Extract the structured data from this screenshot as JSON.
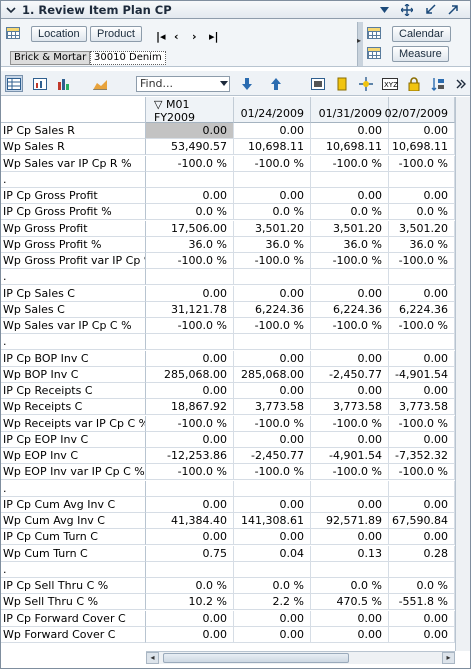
{
  "title": "1. Review Item Plan CP",
  "dims": {
    "location_label": "Location",
    "product_label": "Product",
    "calendar_label": "Calendar",
    "measure_label": "Measure",
    "location_value": "Brick & Mortar",
    "product_value": "30010 Denim"
  },
  "toolbar": {
    "find_placeholder": "Find..."
  },
  "columns": [
    {
      "label": "M01 FY2009",
      "is_period": true
    },
    {
      "label": "01/24/2009"
    },
    {
      "label": "01/31/2009"
    },
    {
      "label": "02/07/2009"
    }
  ],
  "rows": [
    {
      "label": "IP Cp Sales R",
      "values": [
        "0.00",
        "0.00",
        "0.00",
        "0.00"
      ]
    },
    {
      "label": "Wp Sales R",
      "values": [
        "53,490.57",
        "10,698.11",
        "10,698.11",
        "10,698.11"
      ]
    },
    {
      "label": "Wp Sales var IP Cp R %",
      "values": [
        "-100.0 %",
        "-100.0 %",
        "-100.0 %",
        "-100.0 %"
      ]
    },
    {
      "label": ".",
      "values": [
        "",
        "",
        "",
        ""
      ]
    },
    {
      "label": "IP Cp Gross Profit",
      "values": [
        "0.00",
        "0.00",
        "0.00",
        "0.00"
      ]
    },
    {
      "label": "IP Cp Gross Profit %",
      "values": [
        "0.0 %",
        "0.0 %",
        "0.0 %",
        "0.0 %"
      ]
    },
    {
      "label": "Wp Gross Profit",
      "values": [
        "17,506.00",
        "3,501.20",
        "3,501.20",
        "3,501.20"
      ]
    },
    {
      "label": "Wp Gross Profit %",
      "values": [
        "36.0 %",
        "36.0 %",
        "36.0 %",
        "36.0 %"
      ]
    },
    {
      "label": "Wp Gross Profit var IP Cp %",
      "values": [
        "-100.0 %",
        "-100.0 %",
        "-100.0 %",
        "-100.0 %"
      ]
    },
    {
      "label": ".",
      "values": [
        "",
        "",
        "",
        ""
      ]
    },
    {
      "label": "IP Cp Sales C",
      "values": [
        "0.00",
        "0.00",
        "0.00",
        "0.00"
      ]
    },
    {
      "label": "Wp Sales C",
      "values": [
        "31,121.78",
        "6,224.36",
        "6,224.36",
        "6,224.36"
      ]
    },
    {
      "label": "Wp Sales var IP Cp C %",
      "values": [
        "-100.0 %",
        "-100.0 %",
        "-100.0 %",
        "-100.0 %"
      ]
    },
    {
      "label": ".",
      "values": [
        "",
        "",
        "",
        ""
      ]
    },
    {
      "label": "IP Cp BOP Inv C",
      "values": [
        "0.00",
        "0.00",
        "0.00",
        "0.00"
      ]
    },
    {
      "label": "Wp BOP Inv C",
      "values": [
        "285,068.00",
        "285,068.00",
        "-2,450.77",
        "-4,901.54"
      ]
    },
    {
      "label": "IP Cp Receipts C",
      "values": [
        "0.00",
        "0.00",
        "0.00",
        "0.00"
      ]
    },
    {
      "label": "Wp Receipts C",
      "values": [
        "18,867.92",
        "3,773.58",
        "3,773.58",
        "3,773.58"
      ]
    },
    {
      "label": "Wp Receipts var IP Cp C %",
      "values": [
        "-100.0 %",
        "-100.0 %",
        "-100.0 %",
        "-100.0 %"
      ]
    },
    {
      "label": "IP Cp EOP Inv C",
      "values": [
        "0.00",
        "0.00",
        "0.00",
        "0.00"
      ]
    },
    {
      "label": "Wp EOP Inv C",
      "values": [
        "-12,253.86",
        "-2,450.77",
        "-4,901.54",
        "-7,352.32"
      ]
    },
    {
      "label": "Wp EOP Inv var IP Cp C %",
      "values": [
        "-100.0 %",
        "-100.0 %",
        "-100.0 %",
        "-100.0 %"
      ]
    },
    {
      "label": ".",
      "values": [
        "",
        "",
        "",
        ""
      ]
    },
    {
      "label": "IP Cp Cum Avg Inv C",
      "values": [
        "0.00",
        "0.00",
        "0.00",
        "0.00"
      ]
    },
    {
      "label": "Wp Cum Avg Inv C",
      "values": [
        "41,384.40",
        "141,308.61",
        "92,571.89",
        "67,590.84"
      ]
    },
    {
      "label": "IP Cp Cum Turn C",
      "values": [
        "0.00",
        "0.00",
        "0.00",
        "0.00"
      ]
    },
    {
      "label": "Wp Cum Turn C",
      "values": [
        "0.75",
        "0.04",
        "0.13",
        "0.28"
      ]
    },
    {
      "label": ".",
      "values": [
        "",
        "",
        "",
        ""
      ]
    },
    {
      "label": "IP Cp Sell Thru C %",
      "values": [
        "0.0 %",
        "0.0 %",
        "0.0 %",
        "0.0 %"
      ]
    },
    {
      "label": "Wp Sell Thru C %",
      "values": [
        "10.2 %",
        "2.2 %",
        "470.5 %",
        "-551.8 %"
      ]
    },
    {
      "label": "IP Cp Forward Cover C",
      "values": [
        "0.00",
        "0.00",
        "0.00",
        "0.00"
      ]
    },
    {
      "label": "Wp Forward Cover C",
      "values": [
        "0.00",
        "0.00",
        "0.00",
        "0.00"
      ]
    }
  ],
  "colors": {
    "selected_cell": "#c3c3c3",
    "header_bg": "#eff3f7",
    "accent": "#1c4a7a"
  }
}
